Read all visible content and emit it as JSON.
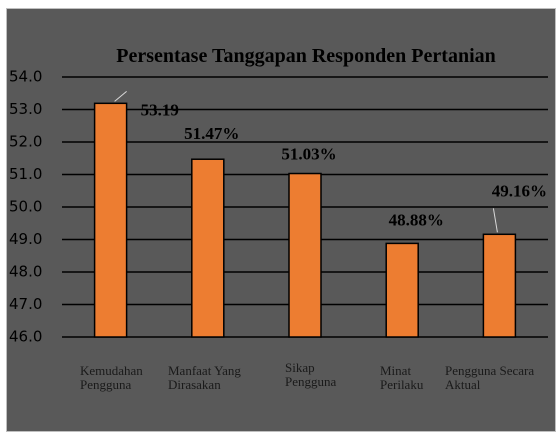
{
  "chart_data": {
    "type": "bar",
    "title": "Persentase Tanggapan Responden Pertanian",
    "categories": [
      "Kemudahan\nPengguna",
      "Manfaat Yang\nDirasakan",
      "Sikap\nPengguna",
      "Minat\nPerilaku",
      "Pengguna Secara\nAktual"
    ],
    "values": [
      53.19,
      51.47,
      51.03,
      48.88,
      49.16
    ],
    "value_labels": [
      "53.19",
      "51.47%",
      "51.03%",
      "48.88%",
      "49.16%"
    ],
    "color": "#ed7d31",
    "ylim": [
      46,
      54
    ],
    "yticks": [
      {
        "value": 46,
        "label": "46.0"
      },
      {
        "value": 47,
        "label": "47.0"
      },
      {
        "value": 48,
        "label": "48.0"
      },
      {
        "value": 49,
        "label": "49.0"
      },
      {
        "value": 50,
        "label": "50.0"
      },
      {
        "value": 51,
        "label": "51.0"
      },
      {
        "value": 52,
        "label": "52.0"
      },
      {
        "value": 53,
        "label": "53.0"
      },
      {
        "value": 54,
        "label": "54.0"
      }
    ],
    "grid": true
  }
}
